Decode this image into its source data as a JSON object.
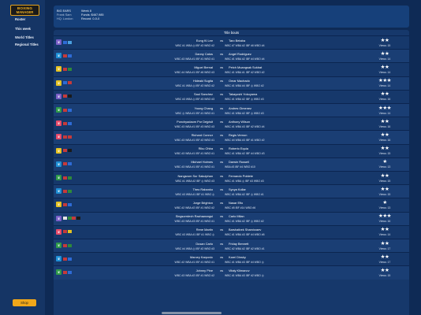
{
  "app": {
    "logo_line1": "BOXING",
    "logo_line2": "MANAGER"
  },
  "nav": [
    {
      "label": "Roster"
    },
    {
      "label": "This week"
    },
    {
      "label": "World Titles"
    },
    {
      "label": "Regional Titles"
    }
  ],
  "shop_label": "Shop",
  "header": {
    "line1": "BIG EARS",
    "line2": "Frank Sam",
    "line3": "HQ: London",
    "week": "Week 8",
    "funds": "Funds: $467,985",
    "record": "Record: 0-0-0"
  },
  "panel_title": "Title bouts",
  "vs_label": "vs",
  "colors": {
    "panel": "#16386b",
    "topbar": "#16407a",
    "accent": "#f0a71a"
  },
  "bouts": [
    {
      "belt_color": "#7a5fc7",
      "belt_icon": "belt-icon",
      "flags": [
        "#2e6bd6",
        "#4aa1e0"
      ],
      "a": "Eung Ki Lee",
      "b": "Taro Betaba",
      "a_ranks": "WBC #1 WBA ◎ IBF #2 WBO #2",
      "b_ranks": "WBC #7 WBA #2 IBF #6 WBO #4",
      "stars": "★★",
      "views": "Views: 15"
    },
    {
      "belt_color": "#1e8fd6",
      "belt_icon": "belt-icon",
      "flags": [
        "#c63a3a",
        "#2e6bd6"
      ],
      "a": "Danny Catos",
      "b": "Angel Rodriguez",
      "a_ranks": "WBC #3 WBA #1 IBF #1 WBO #1",
      "b_ranks": "WBC #1 WBA #2 IBF #4 WBO #4",
      "stars": "★★",
      "views": "Views: 14"
    },
    {
      "belt_color": "#e5c222",
      "belt_icon": "belt-icon",
      "flags": [
        "#c63a3a",
        "#2e8a3a"
      ],
      "a": "Miguel Bernal",
      "b": "Petch Muangsak Sukbat",
      "a_ranks": "WBC #4 WBA #1 IBF #6 WBO #3",
      "b_ranks": "WBC #1 WBA #1 IBF #2 WBO #2",
      "stars": "★★",
      "views": "Views: 14"
    },
    {
      "belt_color": "#e5c222",
      "belt_icon": "belt-icon",
      "flags": [
        "#2e6bd6",
        "#c63a3a"
      ],
      "a": "Hideaki Sugita",
      "b": "Omar Machado",
      "a_ranks": "WBC #1 WBA ◎ IBF #2 WBO #2",
      "b_ranks": "WBC #1 WBA #4 IBF ◎ WBO #2",
      "stars": "★★★",
      "views": "Views: 14"
    },
    {
      "belt_color": "#7a5fc7",
      "belt_icon": "belt-icon",
      "flags": [
        "#c63a3a",
        "#1a1a1a"
      ],
      "a": "Saul Sanchez",
      "b": "Takayoshi Yokoyama",
      "a_ranks": "WBC #3 WBA ◎ IBF #3 WBO #3",
      "b_ranks": "WBC #1 WBA #2 IBF ◎ WBO #3",
      "stars": "★★",
      "views": "Views: 16"
    },
    {
      "belt_color": "#2e9a4a",
      "belt_icon": "belt-icon",
      "flags": [
        "#c63a3a",
        "#2e6bd6"
      ],
      "a": "Young Chang",
      "b": "Andres Gimenez",
      "a_ranks": "WBC ◎ WBA #1 IBF #1 WBO #1",
      "b_ranks": "WBC #1 WBA #2 IBF ◎ WBO #3",
      "stars": "★★★",
      "views": "Views: 14"
    },
    {
      "belt_color": "#e64a6a",
      "belt_icon": "belt-icon",
      "flags": [
        "#c63a3a",
        "#2e6bd6"
      ],
      "a": "Ponchyadaom Por Dejpisit",
      "b": "Anthony Wilson",
      "a_ranks": "WBC #3 WBA #1 IBF #3 WBO #3",
      "b_ranks": "WBC #1 WBA #3 IBF #2 WBO #4",
      "stars": "★★",
      "views": "Views: 16"
    },
    {
      "belt_color": "#e64a6a",
      "belt_icon": "belt-icon",
      "flags": [
        "#c63a3a",
        "#c63a3a"
      ],
      "a": "Richard Connor",
      "b": "Regis Vernon",
      "a_ranks": "WBC #3 WBA #1 IBF #2 WBO #1",
      "b_ranks": "WBC #4 WBA #3 IBF #1 WBO #2",
      "stars": "★★",
      "views": "Views: 16"
    },
    {
      "belt_color": "#e5c222",
      "belt_icon": "belt-icon",
      "flags": [
        "#c63a3a",
        "#1a1a1a"
      ],
      "a": "Riku Ohba",
      "b": "Roberto Equia",
      "a_ranks": "WBC #3 WBA #1 IBF #1 WBO #1",
      "b_ranks": "WBC #1 WBA #2 IBF #4 WBO #3",
      "stars": "★★",
      "views": "Views: 15"
    },
    {
      "belt_color": "#1e8fd6",
      "belt_icon": "belt-icon",
      "flags": [
        "#c63a3a",
        "#2e6bd6"
      ],
      "a": "Michael Holmes",
      "b": "Darwin Russell",
      "a_ranks": "WBC #3 WBA #1 IBF #1 WBO #1",
      "b_ranks": "WBA #3 IBF #4 WBO #10",
      "stars": "★",
      "views": "Views: 13"
    },
    {
      "belt_color": "#2e9a4a",
      "belt_icon": "belt-icon",
      "flags": [
        "#c63a3a",
        "#2e8a3a"
      ],
      "a": "Nangsrom Sor Sakulphan",
      "b": "Fernando Poblete",
      "a_ranks": "WBC #1 WBA #2 IBF ◎ WBO #3",
      "b_ranks": "WBC #1 WBA ◎ IBF #3 WBO #3",
      "stars": "★★",
      "views": "Views: 15"
    },
    {
      "belt_color": "#1e8fd6",
      "belt_icon": "belt-icon",
      "flags": [
        "#c63a3a",
        "#2e8a3a"
      ],
      "a": "Theo Rabanko",
      "b": "Syoya Kollar",
      "a_ranks": "WBC #3 WBA #1 IBF #1 WBO ◎",
      "b_ranks": "WBC #1 WBA #2 IBF ◎ WBO #1",
      "stars": "★★",
      "views": "Views: 15"
    },
    {
      "belt_color": "#e5c222",
      "belt_icon": "belt-icon",
      "flags": [
        "#c63a3a",
        "#2e6bd6"
      ],
      "a": "Jorge Brighton",
      "b": "Nasar Efio",
      "a_ranks": "WBC #2 WBA #2 IBF #1 WBO #2",
      "b_ranks": "WBC #5 IBF #14 WBO #6",
      "stars": "★",
      "views": "Views: 13"
    },
    {
      "belt_color": "#7a5fc7",
      "belt_icon": "belt-icon",
      "flags": [
        "#e5e5e5",
        "#2e8a3a",
        "#c63a3a",
        "#1a1a1a"
      ],
      "a": "Singsorrdech Rachawongsi",
      "b": "Carlo Milan",
      "a_ranks": "WBC #3 WBA #3 IBF #1 WBO #1",
      "b_ranks": "WBC #1 WBA #2 IBF ◎ WBO #2",
      "stars": "★★★",
      "views": "Views: 16"
    },
    {
      "belt_color": "#e64a6a",
      "belt_icon": "belt-icon",
      "flags": [
        "#c63a3a",
        "#e5c222"
      ],
      "a": "Rene Martin",
      "b": "Barshatbek Shamirzaev",
      "a_ranks": "WBC #3 WBA #1 IBF #1 WBO ◎",
      "b_ranks": "WBC #1 WBA #3 IBF #4 WBO #6",
      "stars": "★★",
      "views": "Views: 14"
    },
    {
      "belt_color": "#2e9a4a",
      "belt_icon": "belt-icon",
      "flags": [
        "#c63a3a",
        "#2e8a3a"
      ],
      "a": "Dusan Carlo",
      "b": "Friday Bennett",
      "a_ranks": "WBC #4 WBA ◎ IBF #2 WBO #3",
      "b_ranks": "WBC #2 WBA #2 IBF #2 WBO #1",
      "stars": "★★",
      "views": "Views: 17"
    },
    {
      "belt_color": "#1e8fd6",
      "belt_icon": "belt-icon",
      "flags": [
        "#c63a3a",
        "#2e6bd6"
      ],
      "a": "Marcey Karpovic",
      "b": "Karel Dinsky",
      "a_ranks": "WBC #2 WBA #1 IBF #1 WBO #1",
      "b_ranks": "WBC #1 WBA #3 IBF #4 WBO ◎",
      "stars": "★★",
      "views": "Views: 17"
    },
    {
      "belt_color": "#2e9a4a",
      "belt_icon": "belt-icon",
      "flags": [
        "#c63a3a",
        "#2e6bd6"
      ],
      "a": "Johnny Pine",
      "b": "Vitaly Klimanov",
      "a_ranks": "WBC #3 WBA #2 IBF #1 WBO #2",
      "b_ranks": "WBC #1 WBA #3 IBF #2 WBO ◎",
      "stars": "★★",
      "views": "Views: 15"
    }
  ]
}
